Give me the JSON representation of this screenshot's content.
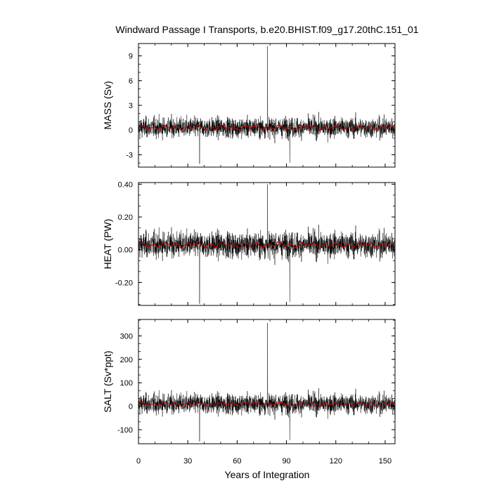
{
  "chart_data": {
    "type": "line",
    "title": "Windward Passage I Transports, b.e20.BHIST.f09_g17.20thC.151_01",
    "xlabel": "Years of Integration",
    "xlim": [
      0,
      156
    ],
    "xticks": [
      0,
      30,
      60,
      90,
      120,
      150
    ],
    "xtick_labels": [
      "0",
      "30",
      "60",
      "90",
      "120",
      "150"
    ],
    "colors": {
      "raw": "#000000",
      "smoothed": "#cc0000"
    },
    "panels": [
      {
        "ylabel": "MASS (Sv)",
        "ylim": [
          -4.5,
          10.5
        ],
        "yticks": [
          -3,
          0,
          3,
          6,
          9
        ],
        "ytick_labels": [
          "-3",
          "0",
          "3",
          "6",
          "9"
        ],
        "series_raw": {
          "mean": 0.3,
          "std": 0.85,
          "spike_max": 10.2,
          "spike_max_year": 78.5,
          "spike_min": -4.1,
          "spike_min_year": 37.2
        },
        "series_smoothed": {
          "mean": 0.3,
          "amplitude": 0.3
        }
      },
      {
        "ylabel": "HEAT (PW)",
        "ylim": [
          -0.34,
          0.41
        ],
        "yticks": [
          -0.2,
          0.0,
          0.2,
          0.4
        ],
        "ytick_labels": [
          "-0.20",
          "0.00",
          "0.20",
          "0.40"
        ],
        "series_raw": {
          "mean": 0.03,
          "std": 0.055,
          "spike_max": 0.4,
          "spike_max_year": 78.5,
          "spike_min": -0.33,
          "spike_min_year": 37.2
        },
        "series_smoothed": {
          "mean": 0.03,
          "amplitude": 0.02
        }
      },
      {
        "ylabel": "SALT (Sv*ppt)",
        "ylim": [
          -160,
          370
        ],
        "yticks": [
          -100,
          0,
          100,
          200,
          300
        ],
        "ytick_labels": [
          "-100",
          "0",
          "100",
          "200",
          "300"
        ],
        "series_raw": {
          "mean": 10,
          "std": 30,
          "spike_max": 355,
          "spike_max_year": 78.5,
          "spike_min": -150,
          "spike_min_year": 37.2
        },
        "series_smoothed": {
          "mean": 10,
          "amplitude": 10
        }
      }
    ]
  }
}
